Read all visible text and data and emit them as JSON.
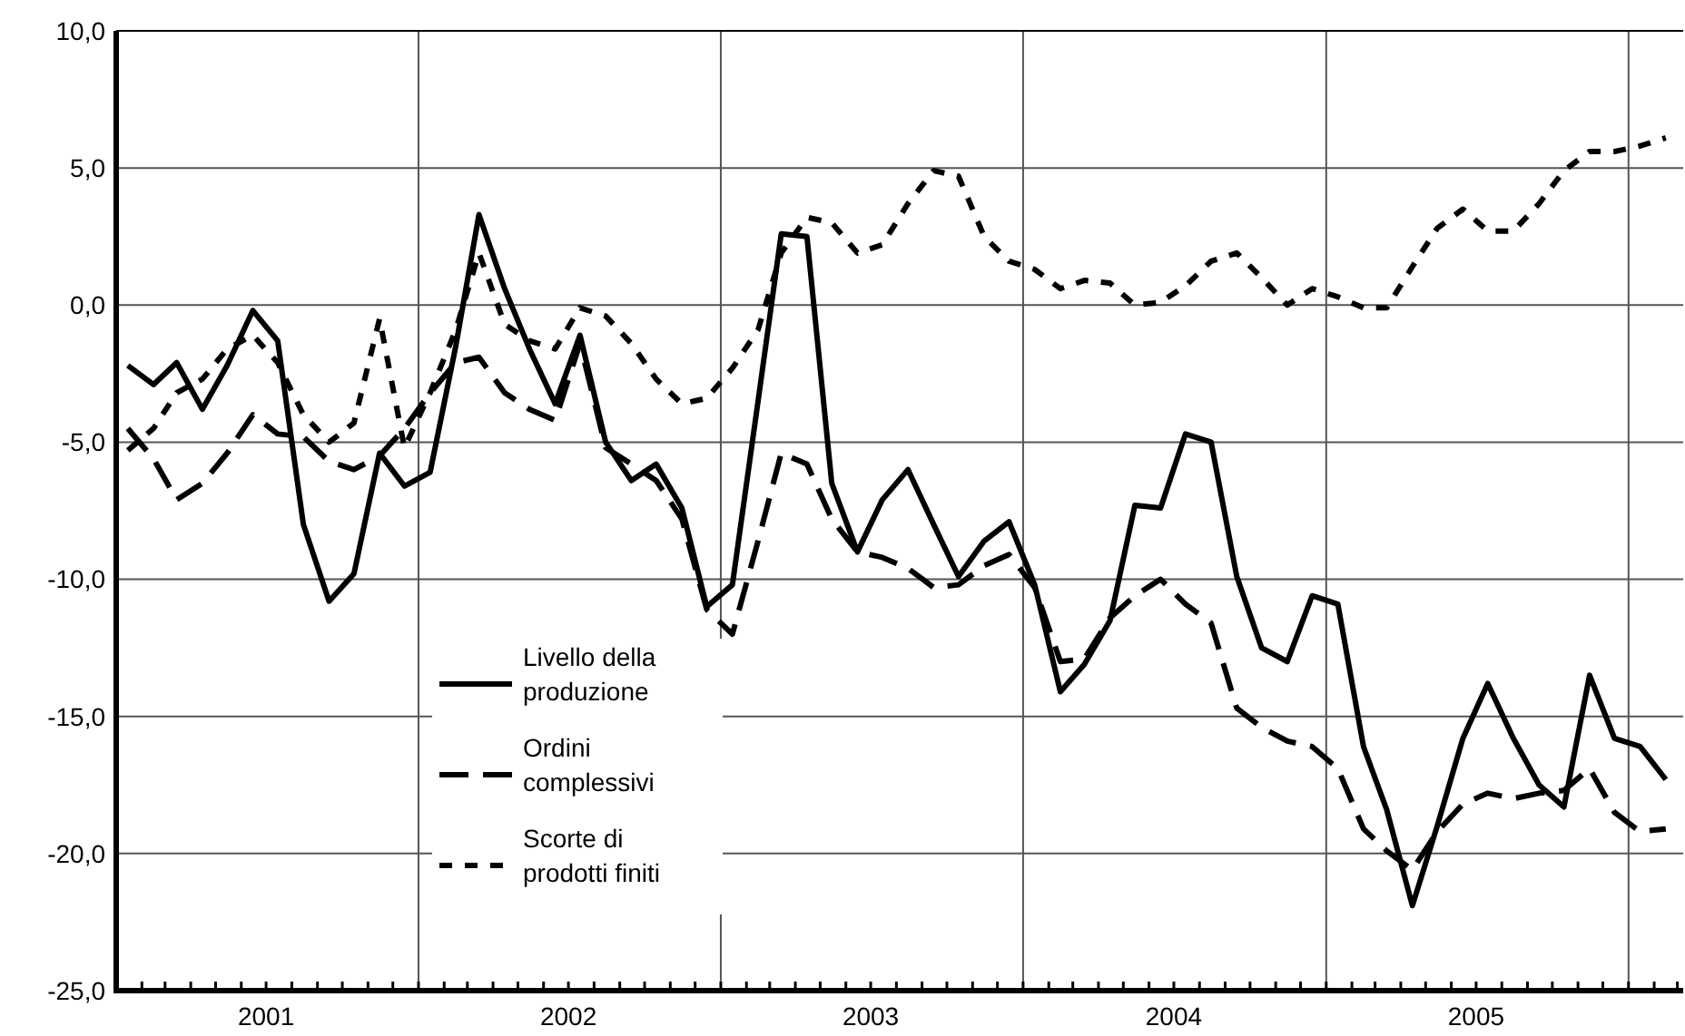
{
  "chart_data": {
    "type": "line",
    "xlim": [
      "2001-01-01",
      "2006-03-08"
    ],
    "ylim": [
      -25,
      10
    ],
    "yticks": [
      {
        "value": -25,
        "label": "-25,0"
      },
      {
        "value": -20,
        "label": "-20,0"
      },
      {
        "value": -15,
        "label": "-15,0"
      },
      {
        "value": -10,
        "label": "-10,0"
      },
      {
        "value": -5,
        "label": "-5,0"
      },
      {
        "value": 0,
        "label": "0,0"
      },
      {
        "value": 5,
        "label": "5,0"
      },
      {
        "value": 10,
        "label": "10,0"
      }
    ],
    "xticks": [
      {
        "value": "2001-01-01",
        "label": null
      },
      {
        "value": "2001-02-01",
        "label": null
      },
      {
        "value": "2001-03-01",
        "label": null
      },
      {
        "value": "2001-04-01",
        "label": null
      },
      {
        "value": "2001-05-01",
        "label": null
      },
      {
        "value": "2001-06-01",
        "label": null
      },
      {
        "value": "2001-07-01",
        "label": "2001"
      },
      {
        "value": "2001-08-01",
        "label": null
      },
      {
        "value": "2001-09-01",
        "label": null
      },
      {
        "value": "2001-10-01",
        "label": null
      },
      {
        "value": "2001-11-01",
        "label": null
      },
      {
        "value": "2001-12-01",
        "label": null
      },
      {
        "value": "2002-01-01",
        "label": null
      },
      {
        "value": "2002-02-01",
        "label": null
      },
      {
        "value": "2002-03-01",
        "label": null
      },
      {
        "value": "2002-04-01",
        "label": null
      },
      {
        "value": "2002-05-01",
        "label": null
      },
      {
        "value": "2002-06-01",
        "label": null
      },
      {
        "value": "2002-07-01",
        "label": "2002"
      },
      {
        "value": "2002-08-01",
        "label": null
      },
      {
        "value": "2002-09-01",
        "label": null
      },
      {
        "value": "2002-10-01",
        "label": null
      },
      {
        "value": "2002-11-01",
        "label": null
      },
      {
        "value": "2002-12-01",
        "label": null
      },
      {
        "value": "2003-01-01",
        "label": null
      },
      {
        "value": "2003-02-01",
        "label": null
      },
      {
        "value": "2003-03-01",
        "label": null
      },
      {
        "value": "2003-04-01",
        "label": null
      },
      {
        "value": "2003-05-01",
        "label": null
      },
      {
        "value": "2003-06-01",
        "label": null
      },
      {
        "value": "2003-07-01",
        "label": "2003"
      },
      {
        "value": "2003-08-01",
        "label": null
      },
      {
        "value": "2003-09-01",
        "label": null
      },
      {
        "value": "2003-10-01",
        "label": null
      },
      {
        "value": "2003-11-01",
        "label": null
      },
      {
        "value": "2003-12-01",
        "label": null
      },
      {
        "value": "2004-01-01",
        "label": null
      },
      {
        "value": "2004-02-01",
        "label": null
      },
      {
        "value": "2004-03-01",
        "label": null
      },
      {
        "value": "2004-04-01",
        "label": null
      },
      {
        "value": "2004-05-01",
        "label": null
      },
      {
        "value": "2004-06-01",
        "label": null
      },
      {
        "value": "2004-07-01",
        "label": "2004"
      },
      {
        "value": "2004-08-01",
        "label": null
      },
      {
        "value": "2004-09-01",
        "label": null
      },
      {
        "value": "2004-10-01",
        "label": null
      },
      {
        "value": "2004-11-01",
        "label": null
      },
      {
        "value": "2004-12-01",
        "label": null
      },
      {
        "value": "2005-01-01",
        "label": null
      },
      {
        "value": "2005-02-01",
        "label": null
      },
      {
        "value": "2005-03-01",
        "label": null
      },
      {
        "value": "2005-04-01",
        "label": null
      },
      {
        "value": "2005-05-01",
        "label": null
      },
      {
        "value": "2005-06-01",
        "label": null
      },
      {
        "value": "2005-07-01",
        "label": "2005"
      },
      {
        "value": "2005-08-01",
        "label": null
      },
      {
        "value": "2005-09-01",
        "label": null
      },
      {
        "value": "2005-10-01",
        "label": null
      },
      {
        "value": "2005-11-01",
        "label": null
      },
      {
        "value": "2005-12-01",
        "label": null
      },
      {
        "value": "2006-01-01",
        "label": null
      },
      {
        "value": "2006-02-01",
        "label": null
      },
      {
        "value": "2006-03-01",
        "label": null
      }
    ],
    "x": [
      "2001-01-15",
      "2001-02-15",
      "2001-03-15",
      "2001-04-15",
      "2001-05-15",
      "2001-06-15",
      "2001-07-15",
      "2001-08-15",
      "2001-09-15",
      "2001-10-15",
      "2001-11-15",
      "2001-12-15",
      "2002-01-15",
      "2002-02-15",
      "2002-03-15",
      "2002-04-15",
      "2002-05-15",
      "2002-06-15",
      "2002-07-15",
      "2002-08-15",
      "2002-09-15",
      "2002-10-15",
      "2002-11-15",
      "2002-12-15",
      "2003-01-15",
      "2003-02-15",
      "2003-03-15",
      "2003-04-15",
      "2003-05-15",
      "2003-06-15",
      "2003-07-15",
      "2003-08-15",
      "2003-09-15",
      "2003-10-15",
      "2003-11-15",
      "2003-12-15",
      "2004-01-15",
      "2004-02-15",
      "2004-03-15",
      "2004-04-15",
      "2004-05-15",
      "2004-06-15",
      "2004-07-15",
      "2004-08-15",
      "2004-09-15",
      "2004-10-15",
      "2004-11-15",
      "2004-12-15",
      "2005-01-15",
      "2005-02-15",
      "2005-03-15",
      "2005-04-15",
      "2005-05-15",
      "2005-06-15",
      "2005-07-15",
      "2005-08-15",
      "2005-09-15",
      "2005-10-15",
      "2005-11-15",
      "2005-12-15",
      "2006-01-15",
      "2006-02-15"
    ],
    "series": [
      {
        "name": "Livello della\nproduzione",
        "color": "#000000",
        "line_style": "solid",
        "values": [
          -2.2,
          -2.9,
          -2.1,
          -3.8,
          -2.2,
          -0.2,
          -1.3,
          -8.0,
          -10.8,
          -9.8,
          -5.4,
          -6.6,
          -6.1,
          -1.5,
          3.3,
          0.6,
          -1.6,
          -3.6,
          -1.1,
          -5.0,
          -6.4,
          -5.8,
          -7.4,
          -11.0,
          -10.2,
          -3.5,
          2.6,
          2.5,
          -6.5,
          -9.0,
          -7.1,
          -6.0,
          -8.0,
          -9.9,
          -8.6,
          -7.9,
          -10.2,
          -14.1,
          -13.1,
          -11.5,
          -7.3,
          -7.4,
          -4.7,
          -5.0,
          -9.9,
          -12.5,
          -13.0,
          -10.6,
          -10.9,
          -16.1,
          -18.4,
          -21.9,
          -19.0,
          -15.8,
          -13.8,
          -15.8,
          -17.5,
          -18.3,
          -13.5,
          -15.8,
          -16.1,
          -17.3
        ]
      },
      {
        "name": "Ordini\ncomplessivi",
        "color": "#000000",
        "line_style": "dashed",
        "values": [
          -4.5,
          -5.6,
          -7.1,
          -6.5,
          -5.4,
          -4.0,
          -4.7,
          -4.8,
          -5.7,
          -6.0,
          -5.5,
          -4.5,
          -3.2,
          -2.1,
          -1.9,
          -3.2,
          -3.8,
          -4.2,
          -1.4,
          -5.2,
          -5.8,
          -6.4,
          -7.8,
          -11.1,
          -12.0,
          -8.6,
          -5.4,
          -5.8,
          -7.8,
          -9.0,
          -9.2,
          -9.6,
          -10.3,
          -10.2,
          -9.5,
          -9.1,
          -10.3,
          -13.0,
          -12.9,
          -11.4,
          -10.6,
          -10.0,
          -10.9,
          -11.6,
          -14.7,
          -15.4,
          -15.9,
          -16.1,
          -16.9,
          -19.1,
          -19.9,
          -20.6,
          -19.2,
          -18.2,
          -17.8,
          -18.0,
          -17.8,
          -17.7,
          -16.9,
          -18.5,
          -19.2,
          -19.1
        ]
      },
      {
        "name": "Scorte di\nprodotti finiti",
        "color": "#000000",
        "line_style": "dotted",
        "values": [
          -5.3,
          -4.5,
          -3.2,
          -2.7,
          -1.6,
          -1.1,
          -2.1,
          -4.0,
          -5.0,
          -4.3,
          -0.5,
          -5.2,
          -3.2,
          -0.9,
          1.9,
          -0.7,
          -1.3,
          -1.6,
          -0.1,
          -0.4,
          -1.4,
          -2.7,
          -3.6,
          -3.4,
          -2.3,
          -0.9,
          1.9,
          3.2,
          3.0,
          1.9,
          2.2,
          3.7,
          4.9,
          4.7,
          2.5,
          1.6,
          1.3,
          0.6,
          0.9,
          0.8,
          0.0,
          0.1,
          0.7,
          1.6,
          1.9,
          1.0,
          0.0,
          0.6,
          0.3,
          -0.1,
          -0.1,
          1.4,
          2.8,
          3.5,
          2.7,
          2.7,
          3.7,
          4.9,
          5.6,
          5.6,
          5.8,
          6.1
        ]
      }
    ],
    "grid": true,
    "legend": "bottom left"
  }
}
